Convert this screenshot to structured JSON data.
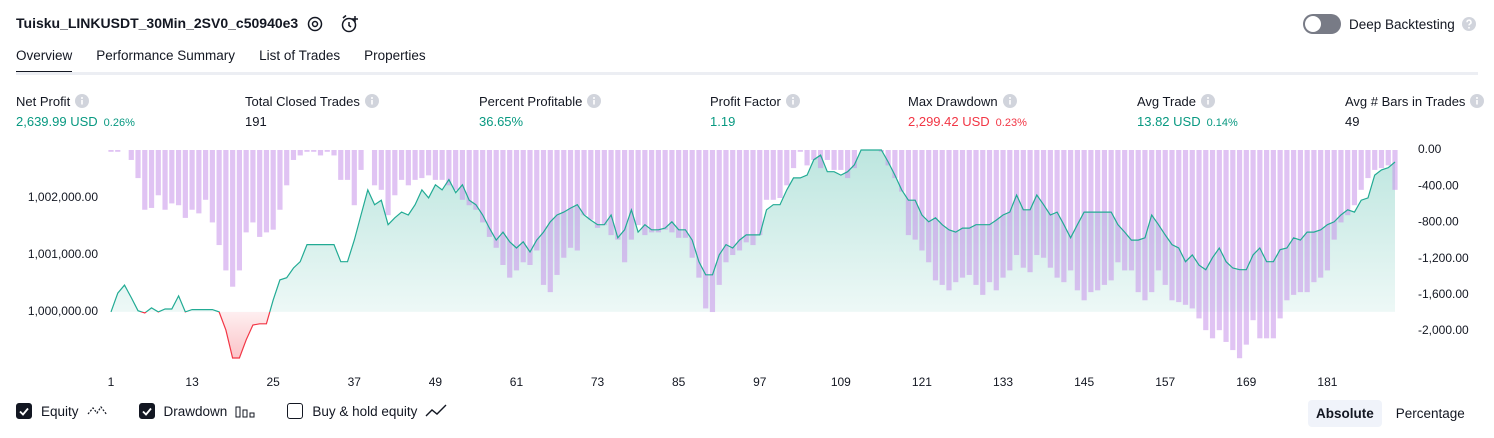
{
  "header": {
    "title": "Tuisku_LINKUSDT_30Min_2SV0_c50940e3",
    "deep_backtesting": {
      "label": "Deep Backtesting",
      "enabled": false
    }
  },
  "tabs": {
    "items": [
      "Overview",
      "Performance Summary",
      "List of Trades",
      "Properties"
    ],
    "active": 0
  },
  "metrics": [
    {
      "label": "Net Profit",
      "value": "2,639.99 USD",
      "percent": "0.26%",
      "color": "#089981"
    },
    {
      "label": "Total Closed Trades",
      "value": "191",
      "color": "#131722"
    },
    {
      "label": "Percent Profitable",
      "value": "36.65%",
      "color": "#089981"
    },
    {
      "label": "Profit Factor",
      "value": "1.19",
      "color": "#089981"
    },
    {
      "label": "Max Drawdown",
      "value": "2,299.42 USD",
      "percent": "0.23%",
      "color": "#f23645"
    },
    {
      "label": "Avg Trade",
      "value": "13.82 USD",
      "percent": "0.14%",
      "color": "#089981"
    },
    {
      "label": "Avg # Bars in Trades",
      "value": "49",
      "color": "#131722"
    }
  ],
  "chart_data": {
    "type": "line",
    "x": [
      1,
      2,
      3,
      4,
      5,
      6,
      7,
      8,
      9,
      10,
      11,
      12,
      13,
      14,
      15,
      16,
      17,
      18,
      19,
      20,
      21,
      22,
      23,
      24,
      25,
      26,
      27,
      28,
      29,
      30,
      31,
      32,
      33,
      34,
      35,
      36,
      37,
      38,
      39,
      40,
      41,
      42,
      43,
      44,
      45,
      46,
      47,
      48,
      49,
      50,
      51,
      52,
      53,
      54,
      55,
      56,
      57,
      58,
      59,
      60,
      61,
      62,
      63,
      64,
      65,
      66,
      67,
      68,
      69,
      70,
      71,
      72,
      73,
      74,
      75,
      76,
      77,
      78,
      79,
      80,
      81,
      82,
      83,
      84,
      85,
      86,
      87,
      88,
      89,
      90,
      91,
      92,
      93,
      94,
      95,
      96,
      97,
      98,
      99,
      100,
      101,
      102,
      103,
      104,
      105,
      106,
      107,
      108,
      109,
      110,
      111,
      112,
      113,
      114,
      115,
      116,
      117,
      118,
      119,
      120,
      121,
      122,
      123,
      124,
      125,
      126,
      127,
      128,
      129,
      130,
      131,
      132,
      133,
      134,
      135,
      136,
      137,
      138,
      139,
      140,
      141,
      142,
      143,
      144,
      145,
      146,
      147,
      148,
      149,
      150,
      151,
      152,
      153,
      154,
      155,
      156,
      157,
      158,
      159,
      160,
      161,
      162,
      163,
      164,
      165,
      166,
      167,
      168,
      169,
      170,
      171,
      172,
      173,
      174,
      175,
      176,
      177,
      178,
      179,
      180,
      181,
      182,
      183,
      184,
      185,
      186,
      187,
      188,
      189,
      190,
      191
    ],
    "series": [
      {
        "name": "Equity",
        "color": "#22ab94",
        "negative_color": "#f23645",
        "checked": true,
        "values": [
          1000000,
          1000330,
          1000470,
          1000250,
          1000020,
          999980,
          1000070,
          1000000,
          1000050,
          1000050,
          1000280,
          1000000,
          1000040,
          1000040,
          1000040,
          1000040,
          1000000,
          999680,
          999190,
          999190,
          999510,
          999770,
          999790,
          999790,
          1000210,
          1000560,
          1000600,
          1000770,
          1000880,
          1001180,
          1001180,
          1001180,
          1001180,
          1001180,
          1000880,
          1000880,
          1001260,
          1001700,
          1002140,
          1001880,
          1001960,
          1001530,
          1001650,
          1001750,
          1001700,
          1001880,
          1002140,
          1002000,
          1002230,
          1002140,
          1002320,
          1002090,
          1002230,
          1001960,
          1001880,
          1001700,
          1001470,
          1001260,
          1001400,
          1001230,
          1001120,
          1001230,
          1001050,
          1001260,
          1001400,
          1001580,
          1001700,
          1001750,
          1001820,
          1001880,
          1001700,
          1001610,
          1001530,
          1001530,
          1001700,
          1001300,
          1001440,
          1001790,
          1001400,
          1001530,
          1001440,
          1001440,
          1001470,
          1001580,
          1001440,
          1001440,
          1001260,
          1000880,
          1000650,
          1000650,
          1001000,
          1001180,
          1001120,
          1001260,
          1001350,
          1001350,
          1001350,
          1001790,
          1001880,
          1001880,
          1002140,
          1002350,
          1002350,
          1002400,
          1002670,
          1002750,
          1002460,
          1002460,
          1002400,
          1002460,
          1002580,
          1002840,
          1002840,
          1002840,
          1002840,
          1002630,
          1002400,
          1002140,
          1001960,
          1001960,
          1001700,
          1001580,
          1001650,
          1001530,
          1001440,
          1001400,
          1001470,
          1001470,
          1001530,
          1001530,
          1001530,
          1001610,
          1001700,
          1001750,
          1002050,
          1001790,
          1001790,
          1002050,
          1001880,
          1001700,
          1001750,
          1001530,
          1001300,
          1001530,
          1001750,
          1001750,
          1001750,
          1001750,
          1001750,
          1001530,
          1001400,
          1001260,
          1001260,
          1001300,
          1001700,
          1001530,
          1001350,
          1001180,
          1001120,
          1000880,
          1001000,
          1000820,
          1000740,
          1000950,
          1001120,
          1000880,
          1000770,
          1000740,
          1000740,
          1001000,
          1001120,
          1000880,
          1000880,
          1001090,
          1001120,
          1001300,
          1001260,
          1001400,
          1001400,
          1001440,
          1001530,
          1001580,
          1001700,
          1001790,
          1001750,
          1001960,
          1002000,
          1002400,
          1002490,
          1002530,
          1002630
        ]
      },
      {
        "name": "Drawdown",
        "type": "bar",
        "axis": "y2",
        "color": "#c792ea",
        "checked": true,
        "values": [
          -20,
          -20,
          0,
          -110,
          -310,
          -660,
          -640,
          -500,
          -660,
          -590,
          -610,
          -750,
          -660,
          -700,
          -550,
          -800,
          -1050,
          -1330,
          -1510,
          -1330,
          -910,
          -800,
          -960,
          -910,
          -880,
          -660,
          -390,
          -110,
          -60,
          -20,
          -20,
          -60,
          -20,
          -60,
          -330,
          -330,
          -610,
          -220,
          0,
          -390,
          -440,
          -720,
          -500,
          -330,
          -390,
          -330,
          -310,
          -280,
          -330,
          -330,
          -390,
          -440,
          -550,
          -610,
          -660,
          -800,
          -960,
          -1080,
          -1270,
          -1410,
          -1330,
          -1240,
          -1270,
          -1110,
          -1490,
          -1570,
          -1380,
          -1190,
          -1080,
          -1110,
          -720,
          -770,
          -860,
          -830,
          -940,
          -990,
          -1240,
          -990,
          -830,
          -940,
          -910,
          -910,
          -880,
          -910,
          -970,
          -970,
          -1190,
          -1410,
          -1750,
          -1790,
          -1490,
          -1240,
          -1160,
          -1110,
          -1020,
          -1050,
          -940,
          -550,
          -550,
          -530,
          -390,
          -200,
          -20,
          -170,
          -110,
          -200,
          -110,
          -220,
          -220,
          -310,
          -200,
          0,
          0,
          0,
          -20,
          -170,
          -310,
          -460,
          -940,
          -990,
          -1110,
          -1240,
          -1440,
          -1490,
          -1550,
          -1460,
          -1410,
          -1380,
          -1490,
          -1600,
          -1460,
          -1550,
          -1410,
          -1330,
          -1160,
          -1300,
          -1350,
          -1160,
          -1190,
          -1300,
          -1410,
          -1460,
          -1330,
          -1550,
          -1660,
          -1570,
          -1550,
          -1490,
          -1440,
          -1240,
          -1330,
          -1330,
          -1570,
          -1660,
          -1570,
          -1330,
          -1490,
          -1660,
          -1680,
          -1710,
          -1750,
          -1860,
          -1990,
          -2080,
          -1990,
          -2120,
          -2210,
          -2300,
          -2150,
          -1880,
          -2080,
          -2080,
          -2080,
          -1860,
          -1660,
          -1600,
          -1570,
          -1570,
          -1460,
          -1410,
          -1330,
          -990,
          -800,
          -720,
          -610,
          -440,
          -310,
          -220,
          -200,
          -170,
          -440
        ]
      }
    ],
    "xlim": [
      1,
      191
    ],
    "xticks": [
      1,
      13,
      25,
      37,
      49,
      61,
      73,
      85,
      97,
      109,
      121,
      133,
      145,
      157,
      169,
      181
    ],
    "ylim": [
      998980,
      1002840
    ],
    "yticks": [
      {
        "value": 1000000,
        "label": "1,000,000.00"
      },
      {
        "value": 1001000,
        "label": "1,001,000.00"
      },
      {
        "value": 1002000,
        "label": "1,002,000.00"
      }
    ],
    "y2lim": [
      -2430,
      0
    ],
    "y2ticks": [
      {
        "value": 0,
        "label": "0.00"
      },
      {
        "value": -400,
        "label": "-400.00"
      },
      {
        "value": -800,
        "label": "-800.00"
      },
      {
        "value": -1200,
        "label": "-1,200.00"
      },
      {
        "value": -1600,
        "label": "-1,600.00"
      },
      {
        "value": -2000,
        "label": "-2,000.00"
      }
    ],
    "grid": false
  },
  "controls": {
    "buy_hold": {
      "label": "Buy & hold equity",
      "checked": false
    },
    "modes": [
      "Absolute",
      "Percentage"
    ],
    "active_mode": 0
  }
}
